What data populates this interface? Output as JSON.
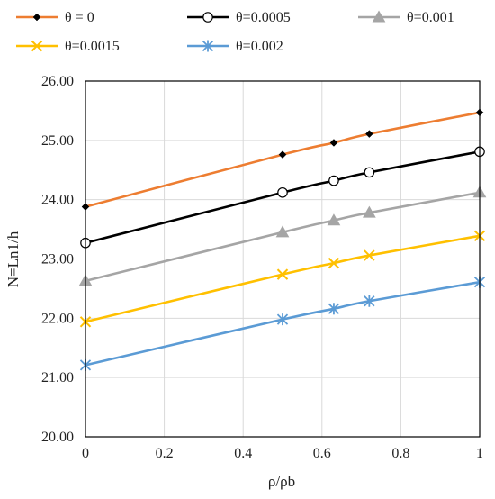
{
  "chart_data": {
    "type": "line",
    "title": "",
    "xlabel": "ρ/ρb",
    "ylabel": "N=Ln1/h",
    "xlim": [
      0,
      1
    ],
    "ylim": [
      20,
      26
    ],
    "x_ticks": [
      0,
      0.2,
      0.4,
      0.6,
      0.8,
      1
    ],
    "x_tick_labels": [
      "0",
      "0.2",
      "0.4",
      "0.6",
      "0.8",
      "1"
    ],
    "y_ticks": [
      20,
      21,
      22,
      23,
      24,
      25,
      26
    ],
    "y_tick_labels": [
      "20.00",
      "21.00",
      "22.00",
      "23.00",
      "24.00",
      "25.00",
      "26.00"
    ],
    "grid": true,
    "legend_position": "top",
    "series": [
      {
        "name": "θ = 0",
        "color": "#ED7D31",
        "marker": "diamond",
        "x": [
          0,
          0.5,
          0.63,
          0.72,
          1
        ],
        "y": [
          23.88,
          24.76,
          24.96,
          25.11,
          25.47
        ]
      },
      {
        "name": "θ=0.0005",
        "color": "#000000",
        "marker": "circle-open",
        "x": [
          0,
          0.5,
          0.63,
          0.72,
          1
        ],
        "y": [
          23.27,
          24.12,
          24.32,
          24.46,
          24.81
        ]
      },
      {
        "name": "θ=0.001",
        "color": "#A5A5A5",
        "marker": "triangle",
        "x": [
          0,
          0.5,
          0.63,
          0.72,
          1
        ],
        "y": [
          22.63,
          23.45,
          23.65,
          23.78,
          24.12
        ]
      },
      {
        "name": "θ=0.0015",
        "color": "#FFC000",
        "marker": "x",
        "x": [
          0,
          0.5,
          0.63,
          0.72,
          1
        ],
        "y": [
          21.94,
          22.74,
          22.93,
          23.06,
          23.39
        ]
      },
      {
        "name": "θ=0.002",
        "color": "#5B9BD5",
        "marker": "asterisk",
        "x": [
          0,
          0.5,
          0.63,
          0.72,
          1
        ],
        "y": [
          21.21,
          21.98,
          22.16,
          22.29,
          22.61
        ]
      }
    ]
  }
}
